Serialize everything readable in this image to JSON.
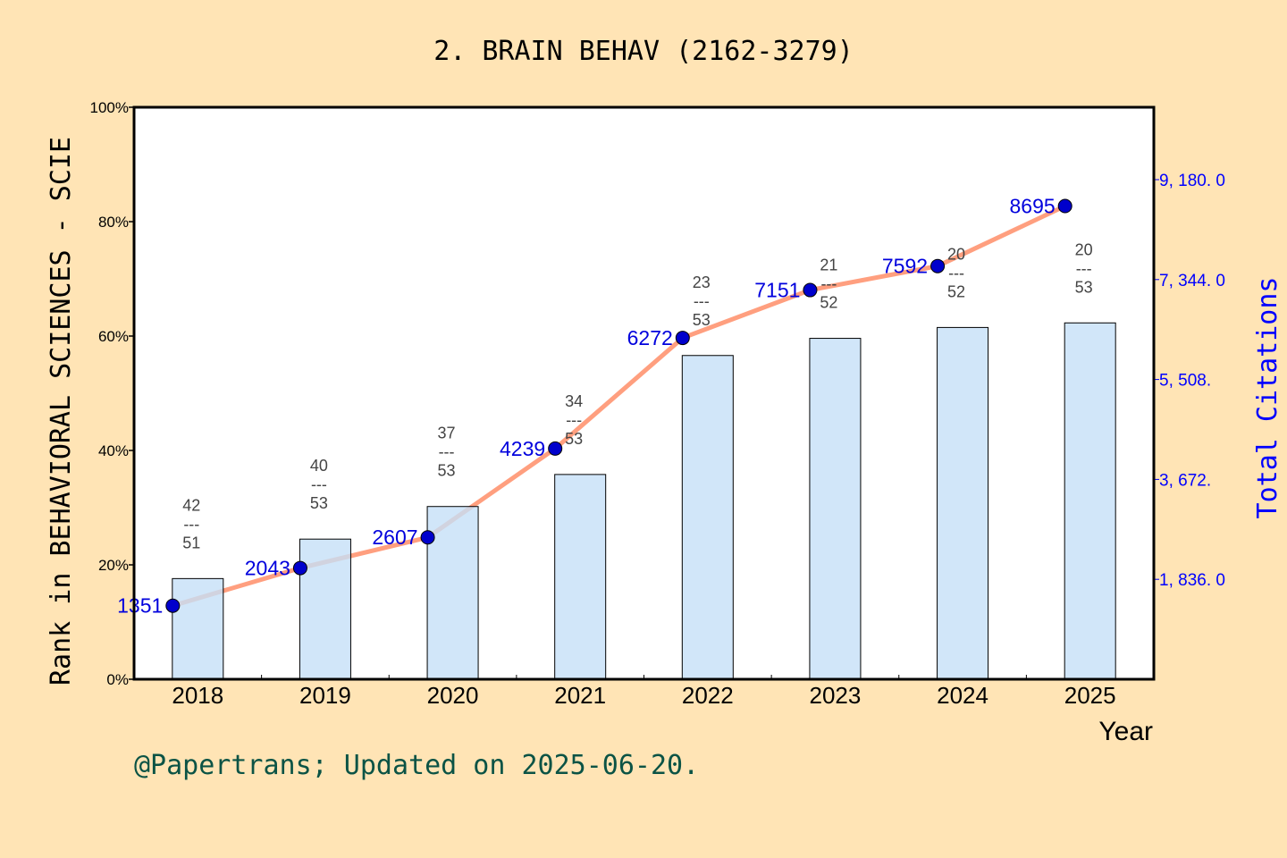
{
  "chart_data": {
    "type": "bar+line",
    "title": "2. BRAIN BEHAV (2162-3279)",
    "xlabel": "Year",
    "ylabel": "Rank in BEHAVIORAL SCIENCES - SCIE",
    "y2label": "Total Citations",
    "categories": [
      "2018",
      "2019",
      "2020",
      "2021",
      "2022",
      "2023",
      "2024",
      "2025"
    ],
    "ranks": [
      "42",
      "40",
      "37",
      "34",
      "23",
      "21",
      "20",
      "20"
    ],
    "totals": [
      "51",
      "53",
      "53",
      "53",
      "53",
      "52",
      "52",
      "53"
    ],
    "bar_percent": [
      17.6,
      24.5,
      30.2,
      35.8,
      56.6,
      59.6,
      61.5,
      62.3
    ],
    "citations": [
      1351,
      2043,
      2607,
      4239,
      6272,
      7151,
      7592,
      8695
    ],
    "ylim": [
      0,
      100
    ],
    "yticks": [
      "0%",
      "20%",
      "40%",
      "60%",
      "80%",
      "100%"
    ],
    "y2lim": [
      0,
      10510
    ],
    "y2ticks": [
      {
        "value": 1836,
        "label": "1, 836. 0"
      },
      {
        "value": 3672,
        "label": "3, 672."
      },
      {
        "value": 5508,
        "label": "5, 508."
      },
      {
        "value": 7344,
        "label": "7, 344. 0"
      },
      {
        "value": 9180,
        "label": "9, 180. 0"
      }
    ],
    "colors": {
      "bar": "#C5E0F7",
      "line": "#FF9F7F",
      "dot": "#0000CC",
      "citation_label": "#0000DD",
      "background": "#FFE4B5"
    },
    "grid": false
  },
  "footer": "@Papertrans; Updated on 2025-06-20."
}
